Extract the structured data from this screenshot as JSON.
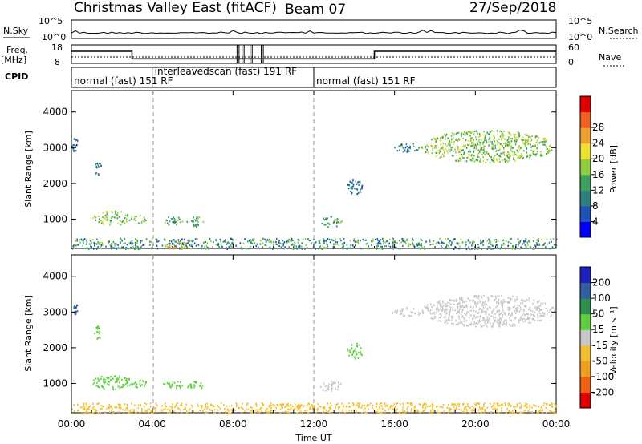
{
  "header": {
    "title": "Christmas Valley East (fitACF)",
    "beam": "Beam 07",
    "date": "27/Sep/2018"
  },
  "strip_labels": {
    "nsky": "N.Sky",
    "nsearch": "N.Search",
    "freq": "Freq.",
    "freq_unit": "[MHz]",
    "nave": "Nave",
    "cpid": "CPID",
    "nsky_ticks": [
      "10^5",
      "10^0"
    ],
    "nsearch_ticks": [
      "10^5",
      "10^0"
    ],
    "freq_ticks": [
      "18",
      "8"
    ],
    "nave_ticks": [
      "60",
      "0"
    ]
  },
  "cpid_modes": [
    {
      "label": "normal (fast)  151 RF",
      "start": 0,
      "end": 4
    },
    {
      "label": "interleavedscan (fast)  191 RF",
      "start": 4,
      "end": 12
    },
    {
      "label": "normal (fast)  151 RF",
      "start": 12,
      "end": 24
    }
  ],
  "chart_data": [
    {
      "type": "line",
      "panel": "frequency",
      "ylabel": "Freq. [MHz]",
      "ylim": [
        8,
        18
      ],
      "series": [
        {
          "x": [
            0,
            3,
            3,
            15,
            15,
            24
          ],
          "y": [
            14.5,
            14.5,
            10.5,
            10.5,
            14.5,
            14.5
          ]
        }
      ]
    },
    {
      "type": "heatmap",
      "panel": "power",
      "xlabel": "",
      "ylabel": "Slant Range [km]",
      "xlim": [
        0,
        24
      ],
      "ylim": [
        180,
        4600
      ],
      "yticks": [
        1000,
        2000,
        3000,
        4000
      ],
      "colorbar": {
        "label": "Power [dB]",
        "ticks": [
          4,
          8,
          12,
          16,
          20,
          24,
          28
        ],
        "colors": [
          "#0000ff",
          "#1f4fb8",
          "#2f7f7f",
          "#3f9f5f",
          "#8fcf3f",
          "#f0e030",
          "#f0a030",
          "#f06020",
          "#e00000"
        ]
      },
      "blobs": [
        {
          "t0": 17.3,
          "t1": 23.9,
          "r0": 2600,
          "r1": 3500,
          "v": 17
        },
        {
          "t0": 15.8,
          "t1": 17.4,
          "r0": 2900,
          "r1": 3150,
          "v": 10
        },
        {
          "t0": 1.0,
          "t1": 3.0,
          "r0": 850,
          "r1": 1250,
          "v": 17
        },
        {
          "t0": 3.0,
          "t1": 3.7,
          "r0": 900,
          "r1": 1150,
          "v": 15
        },
        {
          "t0": 4.5,
          "t1": 5.5,
          "r0": 850,
          "r1": 1100,
          "v": 13
        },
        {
          "t0": 5.7,
          "t1": 6.5,
          "r0": 800,
          "r1": 1100,
          "v": 15
        },
        {
          "t0": 12.2,
          "t1": 13.4,
          "r0": 800,
          "r1": 1100,
          "v": 14
        },
        {
          "t0": 1.1,
          "t1": 1.5,
          "r0": 2250,
          "r1": 2650,
          "v": 9
        },
        {
          "t0": 0.0,
          "t1": 0.3,
          "r0": 2900,
          "r1": 3300,
          "v": 8
        },
        {
          "t0": 13.6,
          "t1": 14.4,
          "r0": 1700,
          "r1": 2150,
          "v": 9
        },
        {
          "t0": 0.0,
          "t1": 24.0,
          "r0": 180,
          "r1": 480,
          "v": 12
        },
        {
          "t0": 4.6,
          "t1": 5.6,
          "r0": 180,
          "r1": 400,
          "v": 24
        }
      ]
    },
    {
      "type": "heatmap",
      "panel": "velocity",
      "xlabel": "Time UT",
      "ylabel": "Slant Range [km]",
      "xlim": [
        0,
        24
      ],
      "ylim": [
        180,
        4600
      ],
      "xticks": [
        "00:00",
        "04:00",
        "08:00",
        "12:00",
        "16:00",
        "20:00",
        "00:00"
      ],
      "yticks": [
        1000,
        2000,
        3000,
        4000
      ],
      "colorbar": {
        "label": "Velocity [m s⁻¹]",
        "ticks": [
          200,
          100,
          50,
          15,
          -15,
          -50,
          -100,
          -200
        ],
        "colors": [
          "#2020c0",
          "#2f5f9f",
          "#2f8f4f",
          "#5fcf3f",
          "#c8c8c8",
          "#f0c030",
          "#f0a020",
          "#f06010",
          "#e00000"
        ]
      },
      "blobs": [
        {
          "t0": 17.3,
          "t1": 23.9,
          "r0": 2600,
          "r1": 3500,
          "v": 0
        },
        {
          "t0": 15.8,
          "t1": 17.4,
          "r0": 2900,
          "r1": 3150,
          "v": 0
        },
        {
          "t0": 1.0,
          "t1": 3.0,
          "r0": 850,
          "r1": 1250,
          "v": 40
        },
        {
          "t0": 3.0,
          "t1": 3.7,
          "r0": 900,
          "r1": 1150,
          "v": 40
        },
        {
          "t0": 4.5,
          "t1": 5.5,
          "r0": 850,
          "r1": 1100,
          "v": 40
        },
        {
          "t0": 5.7,
          "t1": 6.5,
          "r0": 800,
          "r1": 1100,
          "v": 30
        },
        {
          "t0": 12.2,
          "t1": 13.4,
          "r0": 800,
          "r1": 1100,
          "v": 10
        },
        {
          "t0": 1.1,
          "t1": 1.5,
          "r0": 2250,
          "r1": 2650,
          "v": 40
        },
        {
          "t0": 0.0,
          "t1": 0.3,
          "r0": 2900,
          "r1": 3300,
          "v": 150
        },
        {
          "t0": 13.6,
          "t1": 14.4,
          "r0": 1700,
          "r1": 2150,
          "v": 30
        },
        {
          "t0": 0.0,
          "t1": 24.0,
          "r0": 180,
          "r1": 480,
          "v": -30
        }
      ]
    }
  ]
}
